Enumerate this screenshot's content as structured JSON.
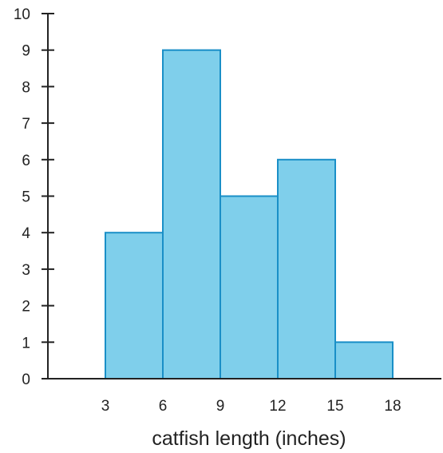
{
  "chart_data": {
    "type": "bar",
    "subtype": "histogram",
    "bins": [
      {
        "start": 3,
        "end": 6,
        "value": 4
      },
      {
        "start": 6,
        "end": 9,
        "value": 9
      },
      {
        "start": 9,
        "end": 12,
        "value": 5
      },
      {
        "start": 12,
        "end": 15,
        "value": 6
      },
      {
        "start": 15,
        "end": 18,
        "value": 1
      }
    ],
    "x_ticks": [
      "3",
      "6",
      "9",
      "12",
      "15",
      "18"
    ],
    "y_ticks": [
      "0",
      "1",
      "2",
      "3",
      "4",
      "5",
      "6",
      "7",
      "8",
      "9",
      "10"
    ],
    "xlabel": "catfish length (inches)",
    "ylabel": "",
    "title": "",
    "xlim": [
      0,
      18.5
    ],
    "ylim": [
      0,
      10
    ],
    "grid": false,
    "colors": {
      "bar_fill": "#7fcfeb",
      "bar_stroke": "#1a8fc7",
      "axis": "#222222"
    }
  }
}
